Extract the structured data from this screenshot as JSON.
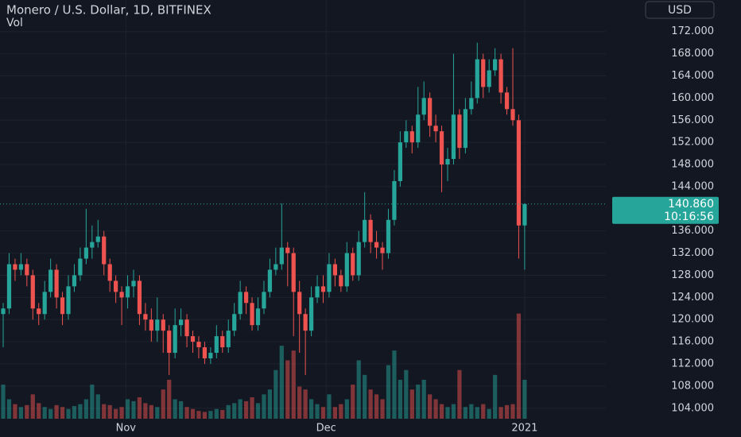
{
  "chart_data": {
    "type": "candlestick",
    "title": "Monero / U.S. Dollar, 1D, BITFINEX",
    "volume_label": "Vol",
    "currency": "USD",
    "up_color": "#26a69a",
    "down_color": "#ef5350",
    "grid": true,
    "open": [
      121,
      122,
      130,
      129,
      130,
      128,
      122,
      121,
      125,
      129,
      124,
      121,
      126,
      128,
      131,
      133,
      134,
      135,
      130,
      127,
      125,
      124,
      126,
      127,
      121,
      120,
      118,
      120,
      118,
      114,
      119,
      120,
      117,
      116,
      115,
      113,
      114,
      117,
      115,
      118,
      121,
      125,
      123,
      119,
      122,
      125,
      129,
      130,
      133,
      132,
      125,
      121,
      118,
      124,
      126,
      125,
      130,
      128,
      126,
      132,
      128,
      134,
      138,
      134,
      133,
      132,
      138,
      145,
      152,
      154,
      152,
      157,
      160,
      155,
      154,
      148,
      149,
      157,
      151,
      158,
      160,
      167,
      162,
      165,
      167,
      161,
      158,
      156,
      137
    ],
    "high": [
      123,
      132,
      131,
      132,
      131,
      129,
      123,
      127,
      131,
      130,
      125,
      128,
      130,
      133,
      140,
      137,
      138,
      136,
      131,
      128,
      126,
      128,
      129,
      128,
      123,
      122,
      124,
      121,
      119,
      122,
      122,
      121,
      118,
      117,
      116,
      115,
      119,
      118,
      120,
      123,
      127,
      126,
      124,
      124,
      127,
      131,
      133,
      141,
      134,
      133,
      127,
      122,
      126,
      128,
      128,
      132,
      131,
      129,
      134,
      133,
      136,
      143,
      139,
      136,
      134,
      140,
      147,
      154,
      156,
      155,
      162,
      163,
      161,
      157,
      155,
      151,
      168,
      158,
      160,
      163,
      170,
      168,
      167,
      169,
      168,
      162,
      169,
      157,
      141
    ],
    "low": [
      115,
      121,
      127,
      128,
      126,
      120,
      119,
      120,
      124,
      122,
      119,
      120,
      125,
      127,
      130,
      131,
      133,
      128,
      125,
      123,
      119,
      122,
      124,
      119,
      118,
      116,
      116,
      114,
      110,
      113,
      117,
      115,
      114,
      113,
      112,
      112,
      113,
      114,
      114,
      117,
      120,
      121,
      118,
      118,
      121,
      124,
      128,
      129,
      126,
      117,
      114,
      110,
      117,
      123,
      123,
      124,
      126,
      125,
      125,
      127,
      127,
      133,
      132,
      131,
      129,
      131,
      137,
      144,
      151,
      150,
      151,
      156,
      153,
      152,
      143,
      145,
      148,
      149,
      150,
      157,
      159,
      160,
      161,
      164,
      159,
      157,
      155,
      131,
      129
    ],
    "close": [
      122,
      130,
      129,
      130,
      128,
      122,
      121,
      125,
      129,
      124,
      121,
      126,
      128,
      131,
      133,
      134,
      135,
      130,
      127,
      125,
      124,
      126,
      127,
      121,
      120,
      118,
      120,
      118,
      114,
      119,
      120,
      117,
      116,
      115,
      113,
      114,
      117,
      115,
      118,
      121,
      125,
      123,
      119,
      122,
      125,
      129,
      130,
      133,
      132,
      125,
      121,
      118,
      124,
      126,
      125,
      130,
      128,
      126,
      132,
      128,
      134,
      138,
      134,
      133,
      132,
      138,
      145,
      152,
      154,
      152,
      157,
      160,
      155,
      154,
      148,
      149,
      157,
      151,
      158,
      160,
      167,
      162,
      165,
      167,
      161,
      158,
      156,
      137,
      140.86
    ],
    "volume": [
      35,
      20,
      15,
      12,
      14,
      25,
      16,
      12,
      10,
      14,
      12,
      10,
      13,
      15,
      20,
      35,
      25,
      15,
      14,
      10,
      12,
      20,
      18,
      22,
      16,
      14,
      12,
      30,
      40,
      20,
      18,
      12,
      10,
      8,
      7,
      8,
      10,
      9,
      14,
      16,
      20,
      18,
      22,
      16,
      25,
      30,
      50,
      75,
      60,
      70,
      33,
      30,
      20,
      15,
      12,
      25,
      12,
      15,
      20,
      35,
      60,
      45,
      30,
      25,
      20,
      55,
      70,
      40,
      50,
      30,
      35,
      40,
      25,
      20,
      15,
      12,
      15,
      50,
      12,
      15,
      12,
      15,
      10,
      45,
      12,
      14,
      15,
      108,
      40
    ],
    "volume_lim": [
      0,
      430
    ],
    "xlim": [
      -0.54,
      101.7
    ],
    "xticks": [
      {
        "value": 20.7,
        "label": "Nov"
      },
      {
        "value": 54.5,
        "label": "Dec"
      },
      {
        "value": 88,
        "label": "2021"
      }
    ],
    "ylim": [
      102.1,
      177.7
    ],
    "yticks": [
      {
        "value": 104,
        "label": "104.000"
      },
      {
        "value": 108,
        "label": "108.000"
      },
      {
        "value": 112,
        "label": "112.000"
      },
      {
        "value": 116,
        "label": "116.000"
      },
      {
        "value": 120,
        "label": "120.000"
      },
      {
        "value": 124,
        "label": "124.000"
      },
      {
        "value": 128,
        "label": "128.000"
      },
      {
        "value": 132,
        "label": "132.000"
      },
      {
        "value": 136,
        "label": "136.000"
      },
      {
        "value": 144,
        "label": "144.000"
      },
      {
        "value": 148,
        "label": "148.000"
      },
      {
        "value": 152,
        "label": "152.000"
      },
      {
        "value": 156,
        "label": "156.000"
      },
      {
        "value": 160,
        "label": "160.000"
      },
      {
        "value": 164,
        "label": "164.000"
      },
      {
        "value": 168,
        "label": "168.000"
      },
      {
        "value": 172,
        "label": "172.000"
      }
    ],
    "last_price": 140.86,
    "last_price_label": "140.860",
    "countdown": "10:16:56"
  }
}
